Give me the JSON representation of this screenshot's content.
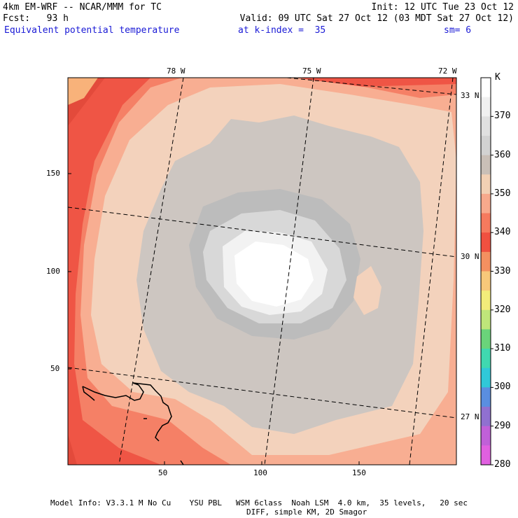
{
  "header": {
    "model_title": "4km EM-WRF -- NCAR/MMM for TC",
    "init": "Init: 12 UTC Tue 23 Oct 12",
    "fcst": "Fcst:   93 h",
    "valid": "Valid: 09 UTC Sat 27 Oct 12 (03 MDT Sat 27 Oct 12)",
    "field": "Equivalent potential temperature",
    "level": "at k-index =  35",
    "smoothing": "sm= 6"
  },
  "axes": {
    "x_ticks": [
      "50",
      "100",
      "150"
    ],
    "y_ticks": [
      "50",
      "100",
      "150"
    ],
    "lon_labels": [
      "78 W",
      "75 W",
      "72 W"
    ],
    "lat_labels": [
      "33 N",
      "30 N",
      "27 N"
    ]
  },
  "colorbar": {
    "unit": "K",
    "tick_labels": [
      "370",
      "360",
      "350",
      "340",
      "330",
      "320",
      "310",
      "300",
      "290",
      "280"
    ],
    "colors": [
      "#ffffff",
      "#f0f0f0",
      "#e0e0e0",
      "#d2d2d2",
      "#c9bfb7",
      "#f2d0b4",
      "#f7a98c",
      "#f57a5e",
      "#f05040",
      "#f49060",
      "#f8c87a",
      "#f3ec7a",
      "#bfe67a",
      "#6ad47a",
      "#40d8b0",
      "#30c8d8",
      "#5a8ee0",
      "#9070d0",
      "#c060d8",
      "#e060e0"
    ]
  },
  "footer": {
    "line1": "Model Info: V3.3.1 M No Cu    YSU PBL   WSM 6class  Noah LSM  4.0 km,  35 levels,   20 sec",
    "line2": "DIFF, simple KM, 2D Smagor"
  },
  "palette": {
    "land": "#e34a3b",
    "c330": "#f8b27a",
    "c340": "#ef5545",
    "c345": "#f58066",
    "c350": "#f8ae92",
    "c355": "#f3d2bc",
    "c360": "#cdc6c1",
    "c363": "#bcbcbc",
    "c367": "#d8d8d8",
    "c370": "#f2f2f2",
    "c375": "#ffffff"
  }
}
